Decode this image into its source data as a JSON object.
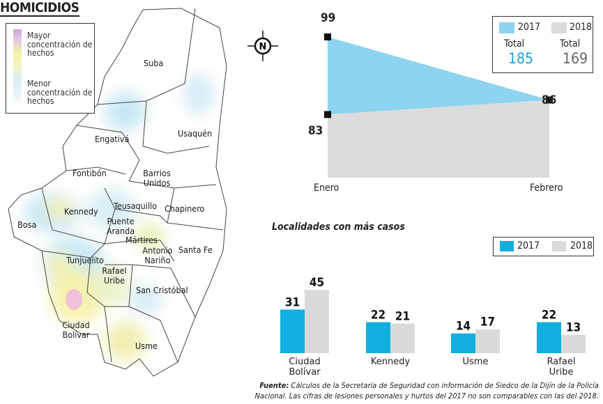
{
  "title": "HOMICIDIOS",
  "legend": {
    "high": "Mayor concentración de hechos",
    "low": "Menor concentración de hechos"
  },
  "compass_letter": "N",
  "localities": [
    {
      "key": "suba",
      "name": "Suba"
    },
    {
      "key": "usaquen",
      "name": "Usaquén"
    },
    {
      "key": "engativa",
      "name": "Engativá"
    },
    {
      "key": "fontibon",
      "name": "Fontibón"
    },
    {
      "key": "barrios",
      "name": "Barrios Unidos"
    },
    {
      "key": "kennedy",
      "name": "Kennedy"
    },
    {
      "key": "teusaquillo",
      "name": "Teusaquillo"
    },
    {
      "key": "chapinero",
      "name": "Chapinero"
    },
    {
      "key": "bosa",
      "name": "Bosa"
    },
    {
      "key": "puente",
      "name": "Puente Aranda"
    },
    {
      "key": "martires",
      "name": "Mártires"
    },
    {
      "key": "antonio",
      "name": "Antonio Nariño"
    },
    {
      "key": "santafe",
      "name": "Santa Fe"
    },
    {
      "key": "tunjuelito",
      "name": "Tunjuelito"
    },
    {
      "key": "rafael",
      "name": "Rafael Uribe"
    },
    {
      "key": "sancristobal",
      "name": "San Cristóbal"
    },
    {
      "key": "ciudad",
      "name": "Ciudad Bolívar"
    },
    {
      "key": "usme",
      "name": "Usme"
    }
  ],
  "trend": {
    "legend": {
      "s2017": "2017",
      "s2018": "2018",
      "total_label": "Total",
      "total_2017": "185",
      "total_2018": "169"
    },
    "colors": {
      "c2017": "#8ed3ef",
      "c2018": "#dcdcdc",
      "accent2017": "#1aa6d8"
    }
  },
  "bars": {
    "title": "Localidades con más casos",
    "legend": {
      "s2017": "2017",
      "s2018": "2018"
    },
    "colors": {
      "c2017": "#12aee0",
      "c2018": "#dadada"
    }
  },
  "chart_data": [
    {
      "type": "area",
      "categories": [
        "Enero",
        "Febrero"
      ],
      "series": [
        {
          "name": "2017",
          "values": [
            99,
            86
          ]
        },
        {
          "name": "2018",
          "values": [
            83,
            86
          ]
        }
      ],
      "totals": {
        "2017": 185,
        "2018": 169
      }
    },
    {
      "type": "bar",
      "title": "Localidades con más casos",
      "categories": [
        "Ciudad Bolívar",
        "Kennedy",
        "Usme",
        "Rafael Uribe"
      ],
      "series": [
        {
          "name": "2017",
          "values": [
            31,
            22,
            14,
            22
          ]
        },
        {
          "name": "2018",
          "values": [
            45,
            21,
            17,
            13
          ]
        }
      ]
    }
  ],
  "source": {
    "label": "Fuente:",
    "text": "Cálculos de la Secretaría de Seguridad con información de Siedco de la Dijín de la Policía Nacional. Las cifras de lesiones personales y hurtos del 2017 no son comparables con las del 2018."
  }
}
